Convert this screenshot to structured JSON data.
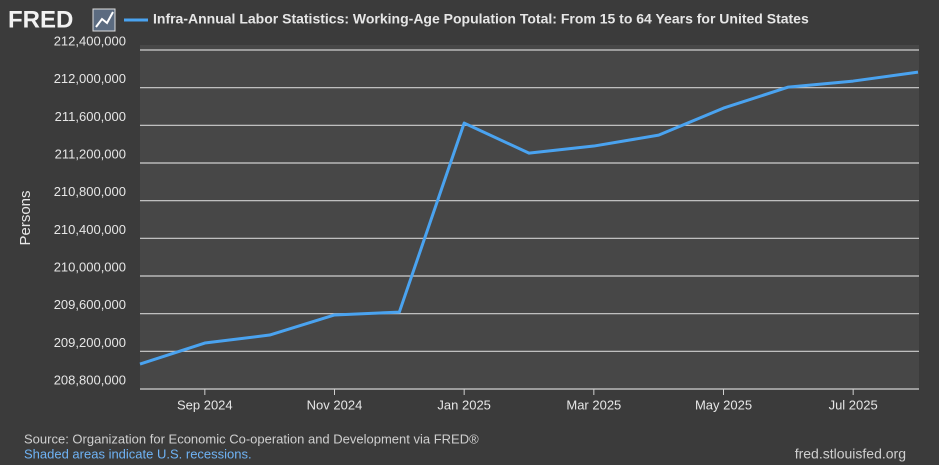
{
  "chart_data": {
    "type": "line",
    "logo": "FRED",
    "y_label": "Persons",
    "source": "Source: Organization for Economic Co-operation and Development via FRED®",
    "note": "Shaded areas indicate U.S. recessions.",
    "site": "fred.stlouisfed.org",
    "x": [
      "2024-08",
      "2024-09",
      "2024-10",
      "2024-11",
      "2024-12",
      "2025-01",
      "2025-02",
      "2025-03",
      "2025-04",
      "2025-05",
      "2025-06",
      "2025-07",
      "2025-08"
    ],
    "series": [
      {
        "name": "Infra-Annual Labor Statistics: Working-Age Population Total: From 15 to 64 Years for United States",
        "color": "#4aa3f0",
        "values": [
          209065000,
          209288000,
          209373000,
          209586000,
          209617000,
          211624000,
          211305000,
          211380000,
          211496000,
          211783000,
          212006000,
          212070000,
          212165000
        ]
      }
    ],
    "xlim": [
      "2024-08",
      "2025-08"
    ],
    "xticks": [
      {
        "value": "2024-09",
        "label": "Sep 2024"
      },
      {
        "value": "2024-11",
        "label": "Nov 2024"
      },
      {
        "value": "2025-01",
        "label": "Jan 2025"
      },
      {
        "value": "2025-03",
        "label": "Mar 2025"
      },
      {
        "value": "2025-05",
        "label": "May 2025"
      },
      {
        "value": "2025-07",
        "label": "Jul 2025"
      }
    ],
    "ylim": [
      208800000,
      212400000
    ],
    "yticks": [
      {
        "value": 208800000,
        "label": "208,800,000"
      },
      {
        "value": 209200000,
        "label": "209,200,000"
      },
      {
        "value": 209600000,
        "label": "209,600,000"
      },
      {
        "value": 210000000,
        "label": "210,000,000"
      },
      {
        "value": 210400000,
        "label": "210,400,000"
      },
      {
        "value": 210800000,
        "label": "210,800,000"
      },
      {
        "value": 211200000,
        "label": "211,200,000"
      },
      {
        "value": 211600000,
        "label": "211,600,000"
      },
      {
        "value": 212000000,
        "label": "212,000,000"
      },
      {
        "value": 212400000,
        "label": "212,400,000"
      }
    ],
    "grid": true
  }
}
